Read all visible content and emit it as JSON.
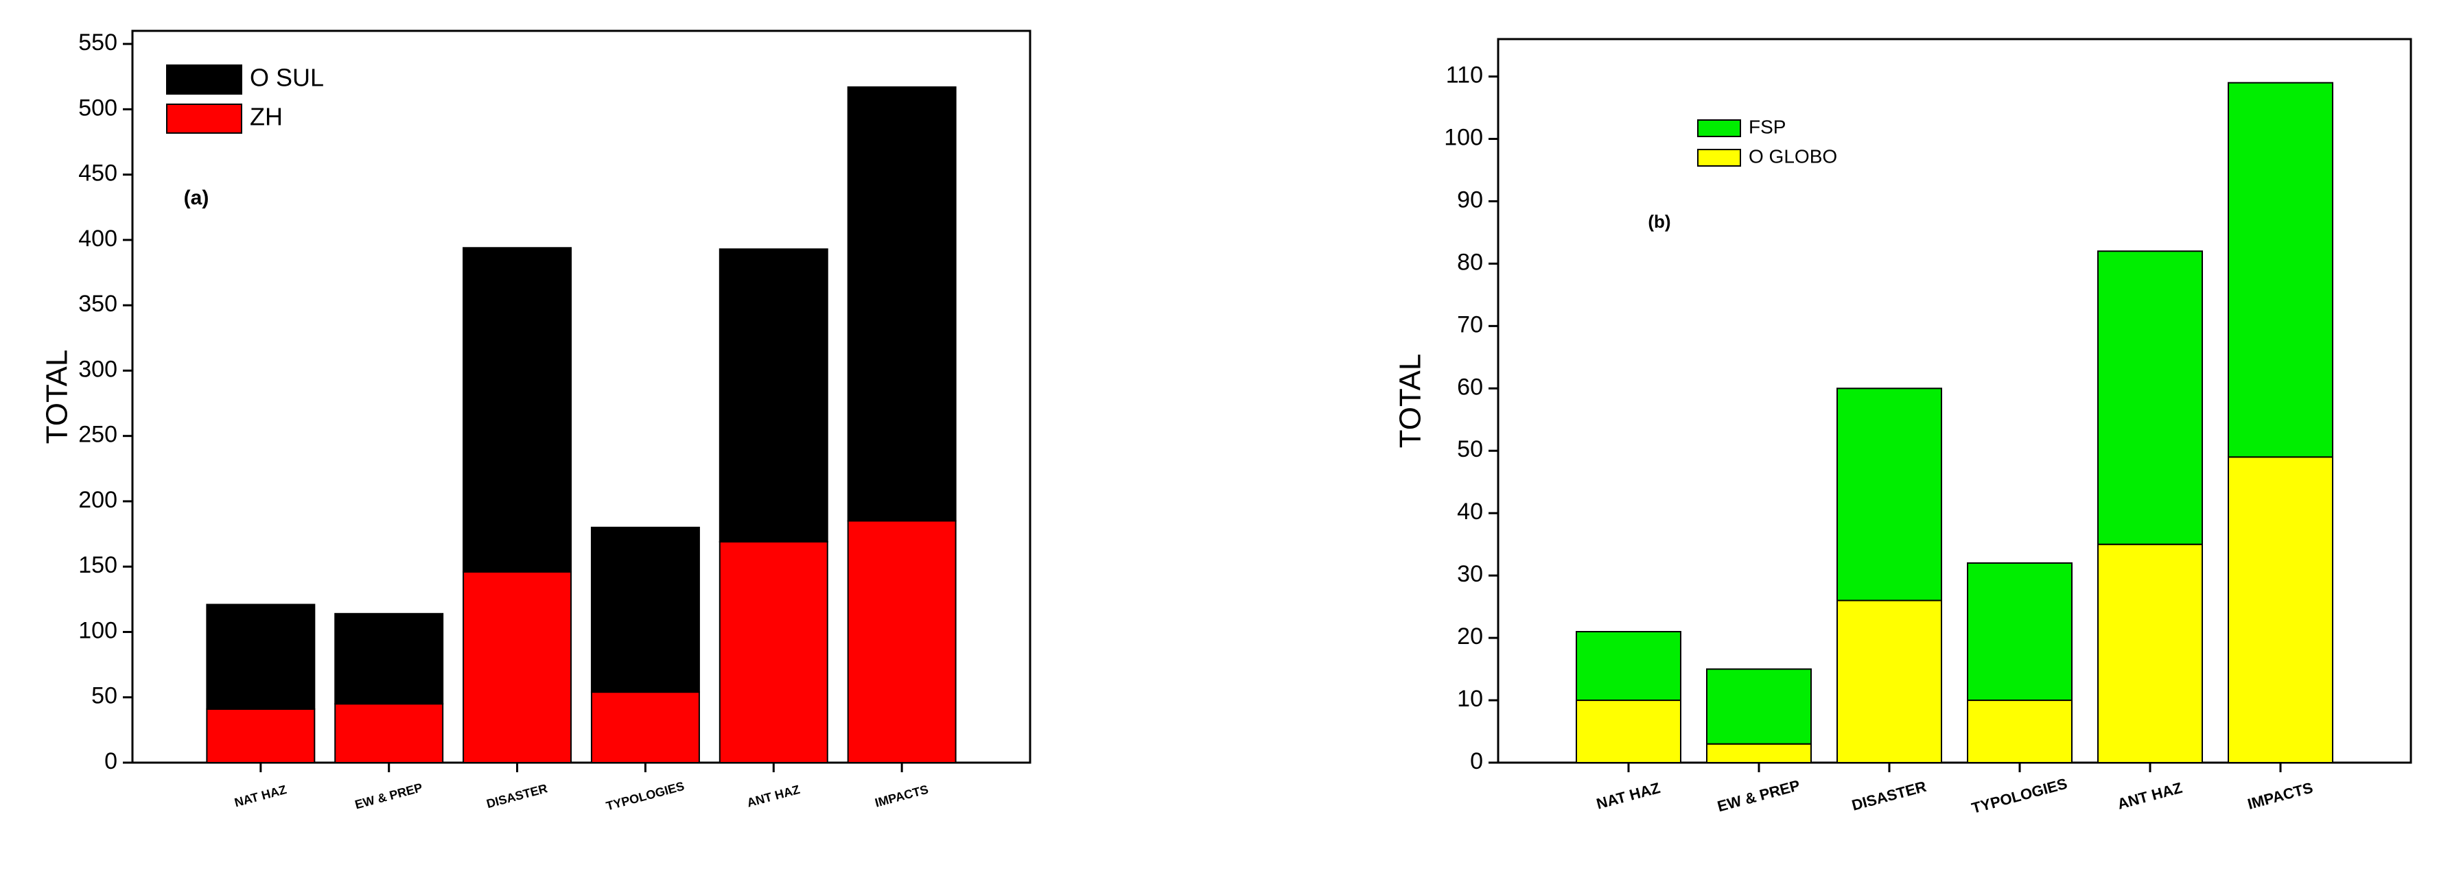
{
  "chart_data": [
    {
      "type": "bar",
      "stacked": true,
      "annotation": "(a)",
      "y_label": "TOTAL",
      "categories": [
        "NAT HAZ",
        "EW & PREP",
        "DISASTER",
        "TYPOLOGIES",
        "ANT HAZ",
        "IMPACTS"
      ],
      "series": [
        {
          "name": "O SUL",
          "color": "#000000",
          "values": [
            80,
            69,
            248,
            126,
            224,
            332
          ]
        },
        {
          "name": "ZH",
          "color": "#ff0000",
          "values": [
            41,
            45,
            146,
            54,
            169,
            185
          ]
        }
      ],
      "ylim": [
        0,
        560
      ],
      "yticks": [
        0,
        50,
        100,
        150,
        200,
        250,
        300,
        350,
        400,
        450,
        500,
        550
      ]
    },
    {
      "type": "bar",
      "stacked": true,
      "annotation": "(b)",
      "y_label": "TOTAL",
      "categories": [
        "NAT HAZ",
        "EW & PREP",
        "DISASTER",
        "TYPOLOGIES",
        "ANT HAZ",
        "IMPACTS"
      ],
      "series": [
        {
          "name": "FSP",
          "color": "#00ee00",
          "values": [
            11,
            12,
            34,
            22,
            47,
            60
          ]
        },
        {
          "name": "O GLOBO",
          "color": "#ffff00",
          "values": [
            10,
            3,
            26,
            10,
            35,
            49
          ]
        }
      ],
      "ylim": [
        0,
        116
      ],
      "yticks": [
        0,
        10,
        20,
        30,
        40,
        50,
        60,
        70,
        80,
        90,
        100,
        110
      ]
    }
  ]
}
